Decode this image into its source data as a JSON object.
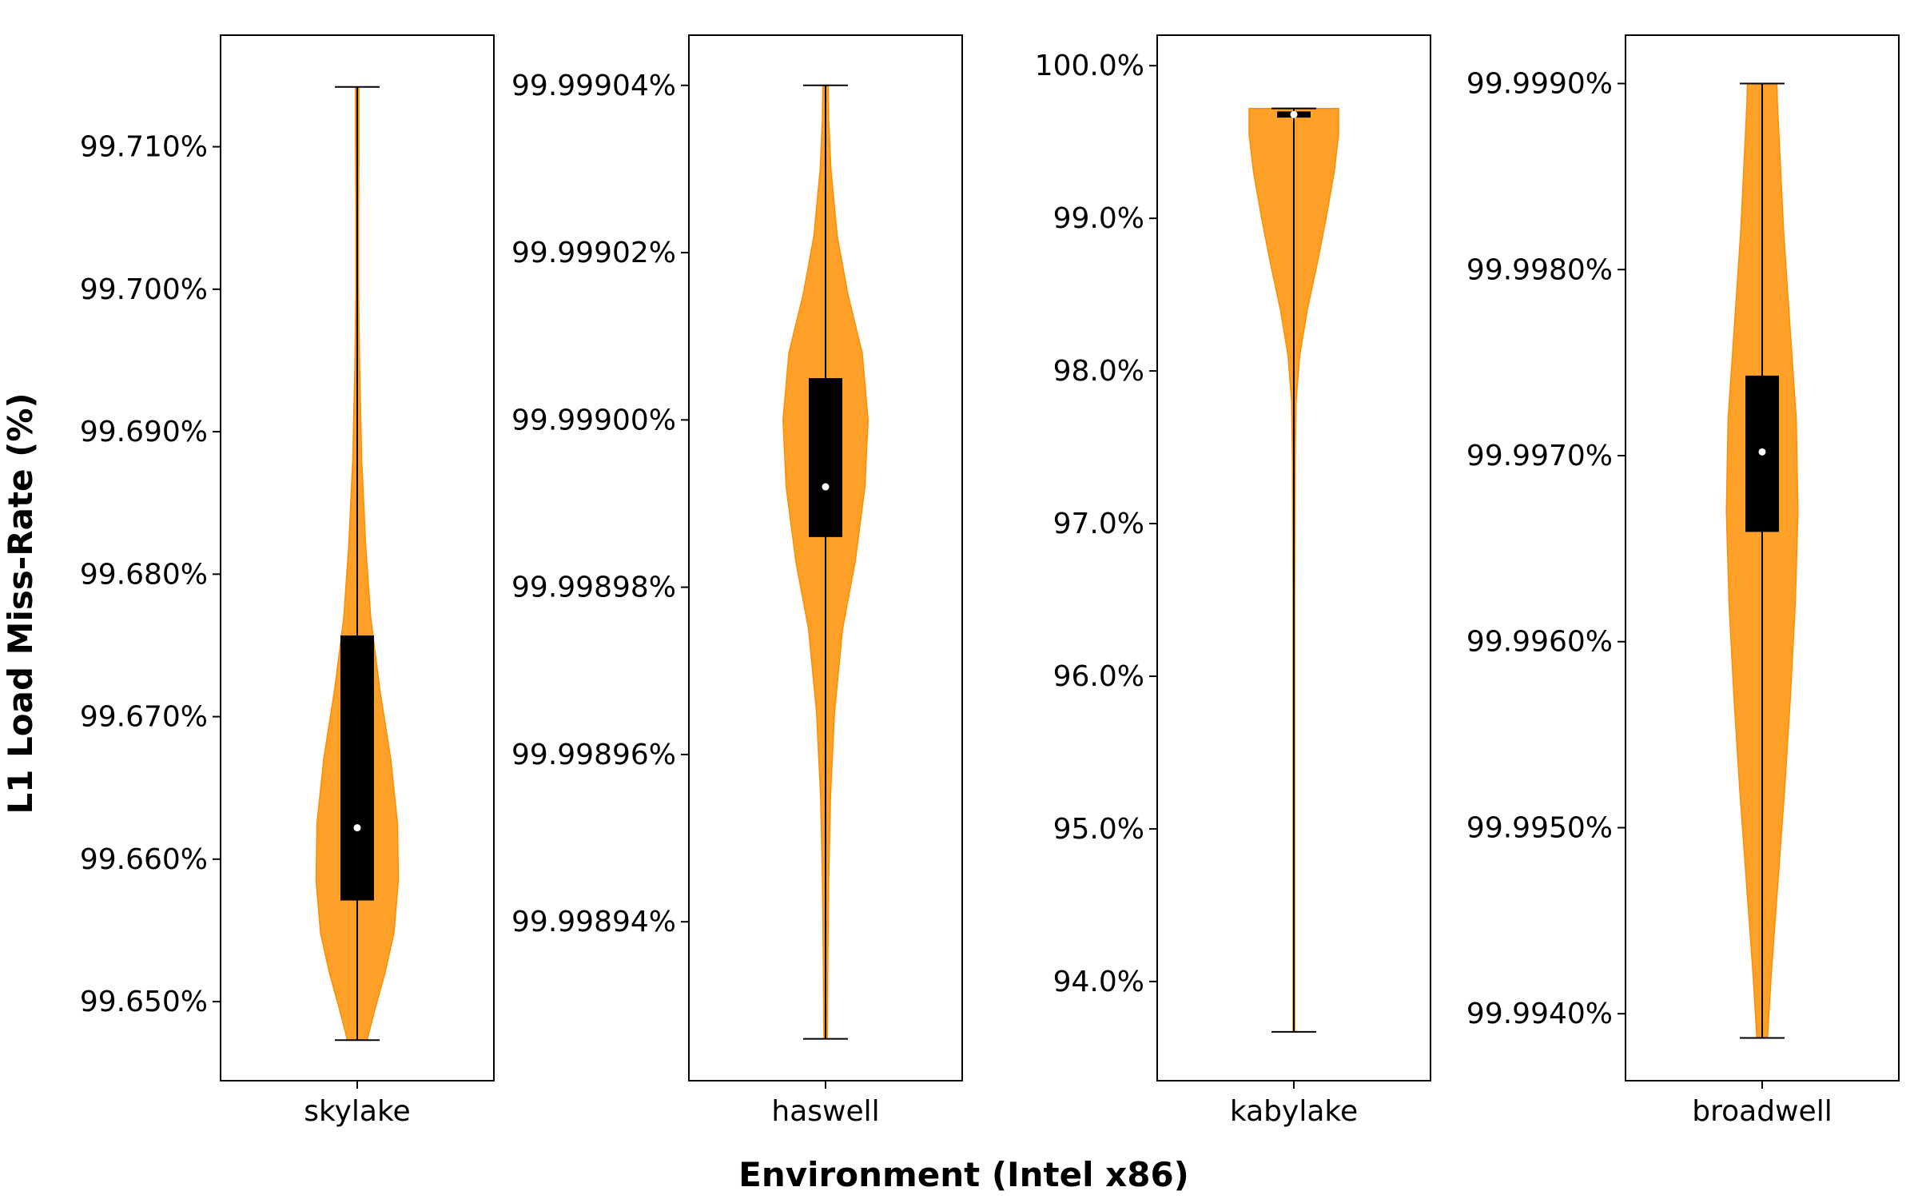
{
  "figure": {
    "ylabel": "L1 Load Miss-Rate (%)",
    "xlabel": "Environment (Intel x86)",
    "violin_color": "#ffa028",
    "violin_edge_color": "#ff8c00",
    "box_color": "#000000",
    "median_marker_color": "#ffffff"
  },
  "chart_data": [
    {
      "type": "violin",
      "category": "skylake",
      "ylim": [
        99.64445,
        99.71783
      ],
      "yticks": [
        99.65,
        99.66,
        99.67,
        99.68,
        99.69,
        99.7,
        99.71
      ],
      "yticklabels": [
        "99.650%",
        "99.660%",
        "99.670%",
        "99.680%",
        "99.690%",
        "99.700%",
        "99.710%"
      ],
      "min": 99.6473,
      "max": 99.7142,
      "q1": 99.6571,
      "median": 99.6622,
      "q3": 99.6757,
      "density": [
        [
          99.6473,
          0.22
        ],
        [
          99.6495,
          0.4
        ],
        [
          99.652,
          0.62
        ],
        [
          99.6548,
          0.82
        ],
        [
          99.6585,
          0.92
        ],
        [
          99.6625,
          0.9
        ],
        [
          99.667,
          0.75
        ],
        [
          99.672,
          0.5
        ],
        [
          99.677,
          0.3
        ],
        [
          99.682,
          0.19
        ],
        [
          99.688,
          0.1
        ],
        [
          99.695,
          0.05
        ],
        [
          99.7,
          0.03
        ],
        [
          99.705,
          0.03
        ],
        [
          99.71,
          0.04
        ],
        [
          99.7142,
          0.04
        ]
      ]
    },
    {
      "type": "violin",
      "category": "haswell",
      "ylim": [
        99.998921,
        99.999046
      ],
      "yticks": [
        99.99894,
        99.99896,
        99.99898,
        99.999,
        99.99902,
        99.99904
      ],
      "yticklabels": [
        "99.99894%",
        "99.99896%",
        "99.99898%",
        "99.99900%",
        "99.99902%",
        "99.99904%"
      ],
      "min": 99.998926,
      "max": 99.99904,
      "q1": 99.998986,
      "median": 99.998992,
      "q3": 99.999005,
      "density": [
        [
          99.998926,
          0.04
        ],
        [
          99.998935,
          0.05
        ],
        [
          99.998945,
          0.07
        ],
        [
          99.998955,
          0.11
        ],
        [
          99.998965,
          0.2
        ],
        [
          99.998975,
          0.38
        ],
        [
          99.998983,
          0.66
        ],
        [
          99.998992,
          0.88
        ],
        [
          99.999,
          0.95
        ],
        [
          99.999008,
          0.82
        ],
        [
          99.999015,
          0.5
        ],
        [
          99.999022,
          0.26
        ],
        [
          99.99903,
          0.12
        ],
        [
          99.999036,
          0.07
        ],
        [
          99.99904,
          0.06
        ]
      ]
    },
    {
      "type": "violin",
      "category": "kabylake",
      "ylim": [
        93.35,
        100.2
      ],
      "yticks": [
        94.0,
        95.0,
        96.0,
        97.0,
        98.0,
        99.0,
        100.0
      ],
      "yticklabels": [
        "94.0%",
        "95.0%",
        "96.0%",
        "97.0%",
        "98.0%",
        "99.0%",
        "100.0%"
      ],
      "min": 93.67,
      "max": 99.72,
      "q1": 99.66,
      "median": 99.68,
      "q3": 99.7,
      "density": [
        [
          93.67,
          0.02
        ],
        [
          94.5,
          0.02
        ],
        [
          95.5,
          0.02
        ],
        [
          96.5,
          0.02
        ],
        [
          97.4,
          0.03
        ],
        [
          97.8,
          0.05
        ],
        [
          98.1,
          0.13
        ],
        [
          98.4,
          0.3
        ],
        [
          98.7,
          0.52
        ],
        [
          99.0,
          0.72
        ],
        [
          99.3,
          0.9
        ],
        [
          99.55,
          1.0
        ],
        [
          99.72,
          1.0
        ]
      ]
    },
    {
      "type": "violin",
      "category": "broadwell",
      "ylim": [
        99.99364,
        99.99926
      ],
      "yticks": [
        99.994,
        99.995,
        99.996,
        99.997,
        99.998,
        99.999
      ],
      "yticklabels": [
        "99.9940%",
        "99.9950%",
        "99.9960%",
        "99.9970%",
        "99.9980%",
        "99.9990%"
      ],
      "min": 99.99387,
      "max": 99.999,
      "q1": 99.99659,
      "median": 99.99702,
      "q3": 99.99743,
      "density": [
        [
          99.99387,
          0.12
        ],
        [
          99.9942,
          0.2
        ],
        [
          99.9947,
          0.35
        ],
        [
          99.9952,
          0.5
        ],
        [
          99.9957,
          0.63
        ],
        [
          99.9962,
          0.74
        ],
        [
          99.9967,
          0.8
        ],
        [
          99.9972,
          0.76
        ],
        [
          99.9977,
          0.62
        ],
        [
          99.9982,
          0.48
        ],
        [
          99.9986,
          0.4
        ],
        [
          99.9989,
          0.34
        ],
        [
          99.999,
          0.33
        ]
      ]
    }
  ]
}
